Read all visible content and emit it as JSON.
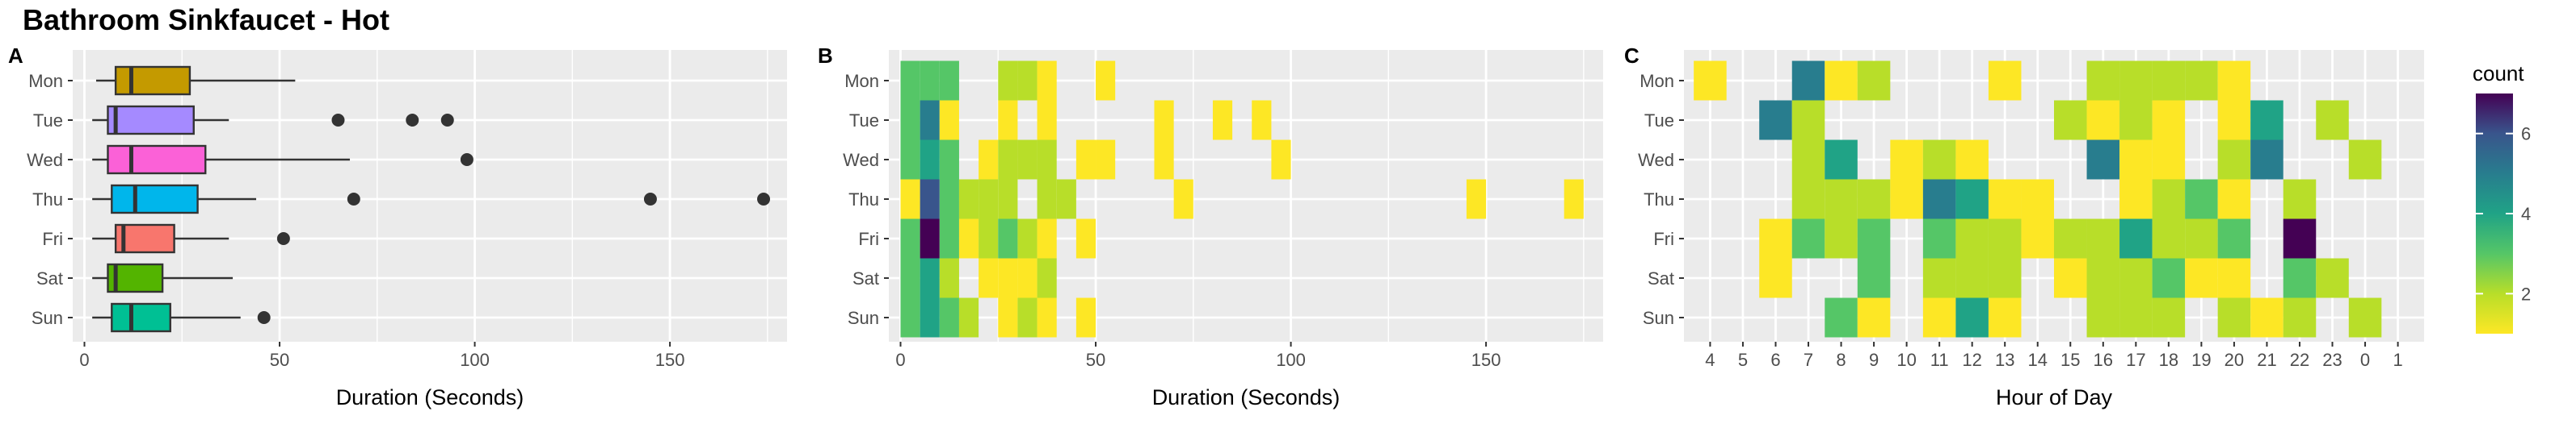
{
  "title": "Bathroom Sinkfaucet - Hot",
  "colors": {
    "panel_background": "#EBEBEB",
    "grid": "#FFFFFF",
    "text": "#4D4D4D",
    "viridis_scale": [
      "#FDE725",
      "#B8DE29",
      "#55C667",
      "#20A386",
      "#287D8E",
      "#39558C",
      "#440154"
    ]
  },
  "chart_data": [
    {
      "panel_label": "A",
      "type": "boxplot",
      "xlabel": "Duration (Seconds)",
      "ylabel": "",
      "xlim": [
        -3,
        180
      ],
      "x_ticks": [
        0,
        50,
        100,
        150
      ],
      "categories": [
        "Mon",
        "Tue",
        "Wed",
        "Thu",
        "Fri",
        "Sat",
        "Sun"
      ],
      "grid": true,
      "boxes": [
        {
          "day": "Mon",
          "color": "#C49A00",
          "min": 3,
          "q1": 8,
          "median": 12,
          "q3": 27,
          "max": 54,
          "outliers": []
        },
        {
          "day": "Tue",
          "color": "#A58AFF",
          "min": 2,
          "q1": 6,
          "median": 8,
          "q3": 28,
          "max": 37,
          "outliers": [
            65,
            84,
            93
          ]
        },
        {
          "day": "Wed",
          "color": "#FB61D7",
          "min": 2,
          "q1": 6,
          "median": 12,
          "q3": 31,
          "max": 68,
          "outliers": [
            98
          ]
        },
        {
          "day": "Thu",
          "color": "#00B6EB",
          "min": 2,
          "q1": 7,
          "median": 13,
          "q3": 29,
          "max": 44,
          "outliers": [
            69,
            145,
            174
          ]
        },
        {
          "day": "Fri",
          "color": "#F8766D",
          "min": 2,
          "q1": 8,
          "median": 10,
          "q3": 23,
          "max": 37,
          "outliers": [
            51
          ]
        },
        {
          "day": "Sat",
          "color": "#53B400",
          "min": 2,
          "q1": 6,
          "median": 8,
          "q3": 20,
          "max": 38,
          "outliers": []
        },
        {
          "day": "Sun",
          "color": "#00C094",
          "min": 2,
          "q1": 7,
          "median": 12,
          "q3": 22,
          "max": 40,
          "outliers": [
            46
          ]
        }
      ]
    },
    {
      "panel_label": "B",
      "type": "heatmap",
      "xlabel": "Duration (Seconds)",
      "ylabel": "",
      "xlim": [
        -3,
        180
      ],
      "x_ticks": [
        0,
        50,
        100,
        150
      ],
      "bin_width": 5,
      "categories": [
        "Mon",
        "Tue",
        "Wed",
        "Thu",
        "Fri",
        "Sat",
        "Sun"
      ],
      "grid": true,
      "cells": [
        {
          "day": "Mon",
          "x": 0,
          "count": 3
        },
        {
          "day": "Mon",
          "x": 5,
          "count": 3
        },
        {
          "day": "Mon",
          "x": 10,
          "count": 3
        },
        {
          "day": "Mon",
          "x": 25,
          "count": 2
        },
        {
          "day": "Mon",
          "x": 30,
          "count": 2
        },
        {
          "day": "Mon",
          "x": 35,
          "count": 1
        },
        {
          "day": "Mon",
          "x": 50,
          "count": 1
        },
        {
          "day": "Tue",
          "x": 0,
          "count": 3
        },
        {
          "day": "Tue",
          "x": 5,
          "count": 5
        },
        {
          "day": "Tue",
          "x": 10,
          "count": 1
        },
        {
          "day": "Tue",
          "x": 25,
          "count": 1
        },
        {
          "day": "Tue",
          "x": 35,
          "count": 1
        },
        {
          "day": "Tue",
          "x": 65,
          "count": 1
        },
        {
          "day": "Tue",
          "x": 80,
          "count": 1
        },
        {
          "day": "Tue",
          "x": 90,
          "count": 1
        },
        {
          "day": "Wed",
          "x": 0,
          "count": 3
        },
        {
          "day": "Wed",
          "x": 5,
          "count": 4
        },
        {
          "day": "Wed",
          "x": 10,
          "count": 3
        },
        {
          "day": "Wed",
          "x": 20,
          "count": 1
        },
        {
          "day": "Wed",
          "x": 25,
          "count": 2
        },
        {
          "day": "Wed",
          "x": 30,
          "count": 2
        },
        {
          "day": "Wed",
          "x": 35,
          "count": 2
        },
        {
          "day": "Wed",
          "x": 45,
          "count": 1
        },
        {
          "day": "Wed",
          "x": 50,
          "count": 1
        },
        {
          "day": "Wed",
          "x": 65,
          "count": 1
        },
        {
          "day": "Wed",
          "x": 95,
          "count": 1
        },
        {
          "day": "Thu",
          "x": 0,
          "count": 1
        },
        {
          "day": "Thu",
          "x": 5,
          "count": 6
        },
        {
          "day": "Thu",
          "x": 10,
          "count": 3
        },
        {
          "day": "Thu",
          "x": 15,
          "count": 2
        },
        {
          "day": "Thu",
          "x": 20,
          "count": 2
        },
        {
          "day": "Thu",
          "x": 25,
          "count": 2
        },
        {
          "day": "Thu",
          "x": 35,
          "count": 2
        },
        {
          "day": "Thu",
          "x": 40,
          "count": 2
        },
        {
          "day": "Thu",
          "x": 70,
          "count": 1
        },
        {
          "day": "Thu",
          "x": 145,
          "count": 1
        },
        {
          "day": "Thu",
          "x": 170,
          "count": 1
        },
        {
          "day": "Fri",
          "x": 0,
          "count": 3
        },
        {
          "day": "Fri",
          "x": 5,
          "count": 7
        },
        {
          "day": "Fri",
          "x": 10,
          "count": 3
        },
        {
          "day": "Fri",
          "x": 15,
          "count": 1
        },
        {
          "day": "Fri",
          "x": 20,
          "count": 2
        },
        {
          "day": "Fri",
          "x": 25,
          "count": 3
        },
        {
          "day": "Fri",
          "x": 30,
          "count": 2
        },
        {
          "day": "Fri",
          "x": 35,
          "count": 1
        },
        {
          "day": "Fri",
          "x": 45,
          "count": 1
        },
        {
          "day": "Sat",
          "x": 0,
          "count": 3
        },
        {
          "day": "Sat",
          "x": 5,
          "count": 4
        },
        {
          "day": "Sat",
          "x": 10,
          "count": 2
        },
        {
          "day": "Sat",
          "x": 20,
          "count": 1
        },
        {
          "day": "Sat",
          "x": 25,
          "count": 1
        },
        {
          "day": "Sat",
          "x": 30,
          "count": 1
        },
        {
          "day": "Sat",
          "x": 35,
          "count": 2
        },
        {
          "day": "Sun",
          "x": 0,
          "count": 3
        },
        {
          "day": "Sun",
          "x": 5,
          "count": 4
        },
        {
          "day": "Sun",
          "x": 10,
          "count": 3
        },
        {
          "day": "Sun",
          "x": 15,
          "count": 2
        },
        {
          "day": "Sun",
          "x": 25,
          "count": 1
        },
        {
          "day": "Sun",
          "x": 30,
          "count": 2
        },
        {
          "day": "Sun",
          "x": 35,
          "count": 1
        },
        {
          "day": "Sun",
          "x": 45,
          "count": 1
        }
      ]
    },
    {
      "panel_label": "C",
      "type": "heatmap",
      "xlabel": "Hour of Day",
      "ylabel": "",
      "x_categories": [
        "4",
        "5",
        "6",
        "7",
        "8",
        "9",
        "10",
        "11",
        "12",
        "13",
        "14",
        "15",
        "16",
        "17",
        "18",
        "19",
        "20",
        "21",
        "22",
        "23",
        "0",
        "1"
      ],
      "categories": [
        "Mon",
        "Tue",
        "Wed",
        "Thu",
        "Fri",
        "Sat",
        "Sun"
      ],
      "grid": true,
      "cells": [
        {
          "day": "Mon",
          "hour": "4",
          "count": 1
        },
        {
          "day": "Mon",
          "hour": "7",
          "count": 5
        },
        {
          "day": "Mon",
          "hour": "8",
          "count": 1
        },
        {
          "day": "Mon",
          "hour": "9",
          "count": 2
        },
        {
          "day": "Mon",
          "hour": "13",
          "count": 1
        },
        {
          "day": "Mon",
          "hour": "16",
          "count": 2
        },
        {
          "day": "Mon",
          "hour": "17",
          "count": 2
        },
        {
          "day": "Mon",
          "hour": "18",
          "count": 2
        },
        {
          "day": "Mon",
          "hour": "19",
          "count": 2
        },
        {
          "day": "Mon",
          "hour": "20",
          "count": 1
        },
        {
          "day": "Tue",
          "hour": "6",
          "count": 5
        },
        {
          "day": "Tue",
          "hour": "7",
          "count": 2
        },
        {
          "day": "Tue",
          "hour": "15",
          "count": 2
        },
        {
          "day": "Tue",
          "hour": "16",
          "count": 1
        },
        {
          "day": "Tue",
          "hour": "17",
          "count": 2
        },
        {
          "day": "Tue",
          "hour": "18",
          "count": 1
        },
        {
          "day": "Tue",
          "hour": "20",
          "count": 1
        },
        {
          "day": "Tue",
          "hour": "21",
          "count": 4
        },
        {
          "day": "Tue",
          "hour": "23",
          "count": 2
        },
        {
          "day": "Wed",
          "hour": "7",
          "count": 2
        },
        {
          "day": "Wed",
          "hour": "8",
          "count": 4
        },
        {
          "day": "Wed",
          "hour": "10",
          "count": 1
        },
        {
          "day": "Wed",
          "hour": "11",
          "count": 2
        },
        {
          "day": "Wed",
          "hour": "12",
          "count": 1
        },
        {
          "day": "Wed",
          "hour": "16",
          "count": 5
        },
        {
          "day": "Wed",
          "hour": "17",
          "count": 1
        },
        {
          "day": "Wed",
          "hour": "18",
          "count": 1
        },
        {
          "day": "Wed",
          "hour": "20",
          "count": 2
        },
        {
          "day": "Wed",
          "hour": "21",
          "count": 5
        },
        {
          "day": "Wed",
          "hour": "0",
          "count": 2
        },
        {
          "day": "Thu",
          "hour": "7",
          "count": 2
        },
        {
          "day": "Thu",
          "hour": "8",
          "count": 2
        },
        {
          "day": "Thu",
          "hour": "9",
          "count": 2
        },
        {
          "day": "Thu",
          "hour": "10",
          "count": 1
        },
        {
          "day": "Thu",
          "hour": "11",
          "count": 5
        },
        {
          "day": "Thu",
          "hour": "12",
          "count": 4
        },
        {
          "day": "Thu",
          "hour": "13",
          "count": 1
        },
        {
          "day": "Thu",
          "hour": "14",
          "count": 1
        },
        {
          "day": "Thu",
          "hour": "17",
          "count": 1
        },
        {
          "day": "Thu",
          "hour": "18",
          "count": 2
        },
        {
          "day": "Thu",
          "hour": "19",
          "count": 3
        },
        {
          "day": "Thu",
          "hour": "20",
          "count": 1
        },
        {
          "day": "Thu",
          "hour": "22",
          "count": 2
        },
        {
          "day": "Fri",
          "hour": "6",
          "count": 1
        },
        {
          "day": "Fri",
          "hour": "7",
          "count": 3
        },
        {
          "day": "Fri",
          "hour": "8",
          "count": 2
        },
        {
          "day": "Fri",
          "hour": "9",
          "count": 3
        },
        {
          "day": "Fri",
          "hour": "11",
          "count": 3
        },
        {
          "day": "Fri",
          "hour": "12",
          "count": 2
        },
        {
          "day": "Fri",
          "hour": "13",
          "count": 2
        },
        {
          "day": "Fri",
          "hour": "14",
          "count": 1
        },
        {
          "day": "Fri",
          "hour": "15",
          "count": 2
        },
        {
          "day": "Fri",
          "hour": "16",
          "count": 2
        },
        {
          "day": "Fri",
          "hour": "17",
          "count": 4
        },
        {
          "day": "Fri",
          "hour": "18",
          "count": 2
        },
        {
          "day": "Fri",
          "hour": "19",
          "count": 2
        },
        {
          "day": "Fri",
          "hour": "20",
          "count": 3
        },
        {
          "day": "Fri",
          "hour": "22",
          "count": 7
        },
        {
          "day": "Sat",
          "hour": "6",
          "count": 1
        },
        {
          "day": "Sat",
          "hour": "9",
          "count": 3
        },
        {
          "day": "Sat",
          "hour": "11",
          "count": 2
        },
        {
          "day": "Sat",
          "hour": "12",
          "count": 2
        },
        {
          "day": "Sat",
          "hour": "13",
          "count": 2
        },
        {
          "day": "Sat",
          "hour": "15",
          "count": 1
        },
        {
          "day": "Sat",
          "hour": "16",
          "count": 2
        },
        {
          "day": "Sat",
          "hour": "17",
          "count": 2
        },
        {
          "day": "Sat",
          "hour": "18",
          "count": 3
        },
        {
          "day": "Sat",
          "hour": "19",
          "count": 1
        },
        {
          "day": "Sat",
          "hour": "20",
          "count": 1
        },
        {
          "day": "Sat",
          "hour": "22",
          "count": 3
        },
        {
          "day": "Sat",
          "hour": "23",
          "count": 2
        },
        {
          "day": "Sun",
          "hour": "8",
          "count": 3
        },
        {
          "day": "Sun",
          "hour": "9",
          "count": 1
        },
        {
          "day": "Sun",
          "hour": "11",
          "count": 1
        },
        {
          "day": "Sun",
          "hour": "12",
          "count": 4
        },
        {
          "day": "Sun",
          "hour": "13",
          "count": 1
        },
        {
          "day": "Sun",
          "hour": "16",
          "count": 2
        },
        {
          "day": "Sun",
          "hour": "17",
          "count": 2
        },
        {
          "day": "Sun",
          "hour": "18",
          "count": 2
        },
        {
          "day": "Sun",
          "hour": "20",
          "count": 2
        },
        {
          "day": "Sun",
          "hour": "21",
          "count": 1
        },
        {
          "day": "Sun",
          "hour": "22",
          "count": 2
        },
        {
          "day": "Sun",
          "hour": "0",
          "count": 2
        }
      ]
    }
  ],
  "legend": {
    "title": "count",
    "placement": "right",
    "breaks": [
      2,
      4,
      6
    ],
    "range": [
      1,
      7
    ]
  }
}
